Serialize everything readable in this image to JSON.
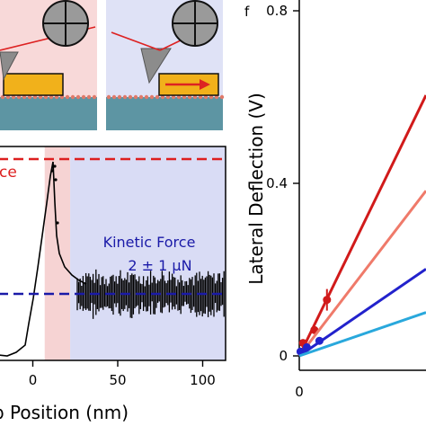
{
  "figure": {
    "panel_f_letter": "f"
  },
  "chart_data": [
    {
      "type": "line",
      "panel": "friction-trace",
      "xlabel": "p Position (nm)",
      "ylabel": "",
      "xlim": [
        -15,
        130
      ],
      "x_ticks": [
        0,
        50,
        100
      ],
      "static_line_label": "ce",
      "kinetic_label": "Kinetic Force",
      "kinetic_value": "2 ± 1 μN",
      "colors": {
        "static": "#dd1f1f",
        "kinetic": "#1a1aa8",
        "trace": "#000000",
        "static_region": "#f6d3d3",
        "kinetic_region": "#d9dcf5"
      },
      "regions": [
        {
          "name": "static",
          "x": [
            7,
            22
          ]
        },
        {
          "name": "kinetic",
          "x": [
            22,
            130
          ]
        }
      ],
      "y_levels": {
        "static": 1.0,
        "kinetic": 0.33
      }
    },
    {
      "type": "scatter",
      "panel": "f",
      "xlabel": "",
      "ylabel": "Lateral Deflection (V)",
      "ylim": [
        -0.02,
        0.82
      ],
      "y_ticks": [
        0,
        0.4,
        0.8
      ],
      "y_tick_labels": [
        "0",
        "0.4",
        "0.8"
      ],
      "x_tick_labels": [
        "0"
      ],
      "series": [
        {
          "color": "#d11a1a",
          "x": [
            0.03,
            0.12,
            0.22
          ],
          "y": [
            0.03,
            0.06,
            0.13
          ],
          "slope": 0.6
        },
        {
          "color": "#ef7a6a",
          "x": [],
          "y": [],
          "slope": 0.38
        },
        {
          "color": "#2222cc",
          "x": [
            0.01,
            0.06,
            0.16
          ],
          "y": [
            0.01,
            0.02,
            0.035
          ],
          "slope": 0.2
        },
        {
          "color": "#29a8dc",
          "x": [],
          "y": [],
          "slope": 0.1
        }
      ]
    }
  ]
}
